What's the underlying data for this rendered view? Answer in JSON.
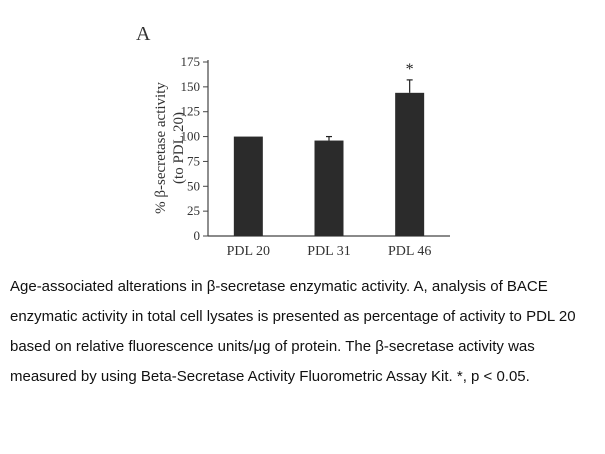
{
  "figure": {
    "panel_label": "A",
    "caption": "Age-associated alterations in β-secretase enzymatic activity. A, analysis of BACE enzymatic activity in total cell lysates is presented as percentage of activity to PDL 20 based on relative fluorescence units/μg of protein. The  β-secretase activity was measured by using Beta-Secretase Activity Fluorometric Assay Kit. *, p  < 0.05."
  },
  "chart_data": {
    "type": "bar",
    "categories": [
      "PDL 20",
      "PDL 31",
      "PDL 46"
    ],
    "values": [
      100,
      96,
      144
    ],
    "errors": [
      0,
      4,
      13
    ],
    "significance": [
      "",
      "",
      "*"
    ],
    "ylabel_line1": "% β-secretase activity",
    "ylabel_line2": "(to PDL 20)",
    "ylim": [
      0,
      175
    ],
    "yticks": [
      0,
      25,
      50,
      75,
      100,
      125,
      150,
      175
    ],
    "bar_color": "#2b2b2b",
    "grid": false
  }
}
